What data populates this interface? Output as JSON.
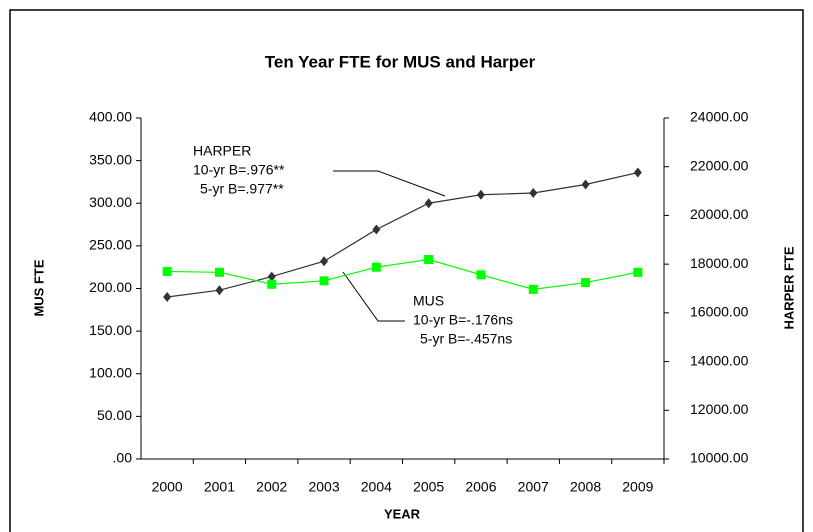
{
  "chart_data": {
    "type": "line",
    "title": "Ten Year FTE for MUS and Harper",
    "xlabel": "YEAR",
    "ylabel": "MUS FTE",
    "y2label": "HARPER FTE",
    "categories": [
      "2000",
      "2001",
      "2002",
      "2003",
      "2004",
      "2005",
      "2006",
      "2007",
      "2008",
      "2009"
    ],
    "series": [
      {
        "name": "HARPER",
        "color": "#333333",
        "marker": "diamond",
        "axis": "y2",
        "values": [
          16650,
          16930,
          17490,
          18120,
          19420,
          20500,
          20850,
          20920,
          21270,
          21760
        ]
      },
      {
        "name": "MUS",
        "color": "#00ff00",
        "marker": "square",
        "axis": "y",
        "values": [
          220,
          219,
          205,
          209,
          225,
          234,
          216,
          199,
          207,
          219
        ]
      }
    ],
    "annotations": [
      [
        "10-yr B=.976**",
        "5-yr B=.977**"
      ],
      [
        "10-yr B=-.176ns",
        "5-yr B=-.457ns"
      ]
    ],
    "ylim": [
      0,
      400
    ],
    "yticks": [
      {
        "value": 0,
        "label": ".00"
      },
      {
        "value": 50,
        "label": "50.00"
      },
      {
        "value": 100,
        "label": "100.00"
      },
      {
        "value": 150,
        "label": "150.00"
      },
      {
        "value": 200,
        "label": "200.00"
      },
      {
        "value": 250,
        "label": "250.00"
      },
      {
        "value": 300,
        "label": "300.00"
      },
      {
        "value": 350,
        "label": "350.00"
      },
      {
        "value": 400,
        "label": "400.00"
      }
    ],
    "y2lim": [
      10000,
      24000
    ],
    "y2ticks": [
      {
        "value": 10000,
        "label": "10000.00"
      },
      {
        "value": 12000,
        "label": "12000.00"
      },
      {
        "value": 14000,
        "label": "14000.00"
      },
      {
        "value": 16000,
        "label": "16000.00"
      },
      {
        "value": 18000,
        "label": "18000.00"
      },
      {
        "value": 20000,
        "label": "20000.00"
      },
      {
        "value": 22000,
        "label": "22000.00"
      },
      {
        "value": 24000,
        "label": "24000.00"
      }
    ],
    "grid": false
  }
}
